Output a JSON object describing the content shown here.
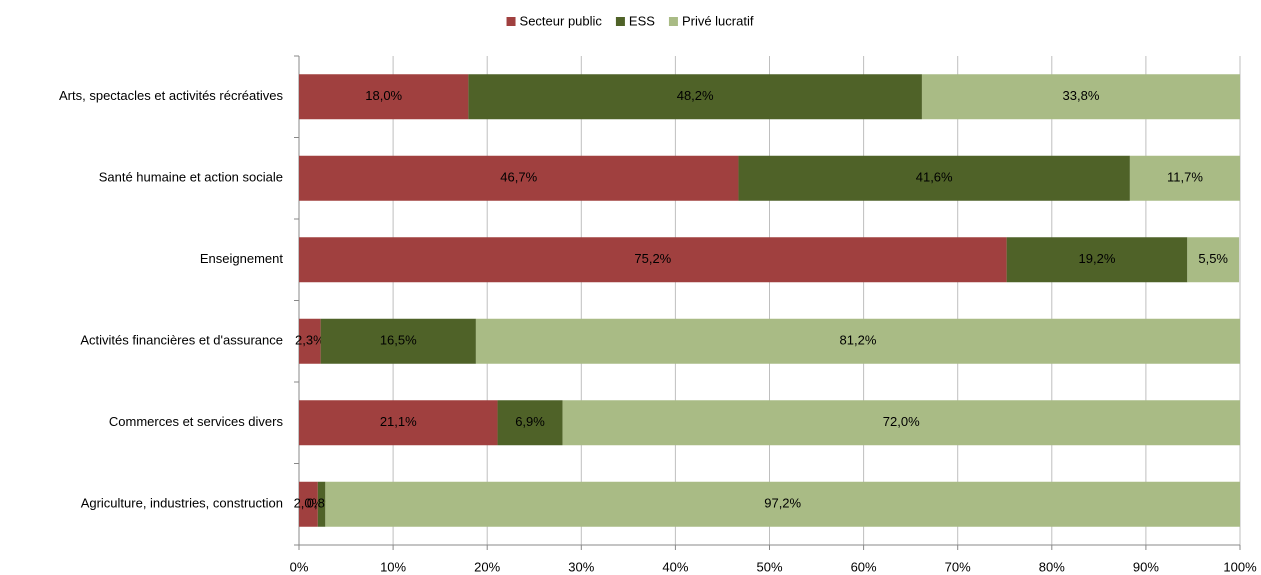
{
  "chart_data": {
    "type": "stacked_barh",
    "categories": [
      "Arts, spectacles et activités récréatives",
      "Santé humaine et action sociale",
      "Enseignement",
      "Activités financières et d'assurance",
      "Commerces et services divers",
      "Agriculture, industries, construction"
    ],
    "series": [
      {
        "name": "Secteur public",
        "color": "#a0403f",
        "values": [
          18.0,
          46.7,
          75.2,
          2.3,
          21.1,
          2.0
        ],
        "value_labels": [
          "18,0%",
          "46,7%",
          "75,2%",
          "2,3%",
          "21,1%",
          "2,0%"
        ]
      },
      {
        "name": "ESS",
        "color": "#4f6228",
        "values": [
          48.2,
          41.6,
          19.2,
          16.5,
          6.9,
          0.8
        ],
        "value_labels": [
          "48,2%",
          "41,6%",
          "19,2%",
          "16,5%",
          "6,9%",
          "0,8%"
        ]
      },
      {
        "name": "Privé lucratif",
        "color": "#a9bb85",
        "values": [
          33.8,
          11.7,
          5.5,
          81.2,
          72.0,
          97.2
        ],
        "value_labels": [
          "33,8%",
          "11,7%",
          "5,5%",
          "81,2%",
          "72,0%",
          "97,2%"
        ]
      }
    ],
    "xlim": [
      0,
      100
    ],
    "xticks": [
      {
        "value": 0,
        "label": "0%"
      },
      {
        "value": 10,
        "label": "10%"
      },
      {
        "value": 20,
        "label": "20%"
      },
      {
        "value": 30,
        "label": "30%"
      },
      {
        "value": 40,
        "label": "40%"
      },
      {
        "value": 50,
        "label": "50%"
      },
      {
        "value": 60,
        "label": "60%"
      },
      {
        "value": 70,
        "label": "70%"
      },
      {
        "value": 80,
        "label": "80%"
      },
      {
        "value": 90,
        "label": "90%"
      },
      {
        "value": 100,
        "label": "100%"
      }
    ],
    "grid": true,
    "legend": "top"
  }
}
